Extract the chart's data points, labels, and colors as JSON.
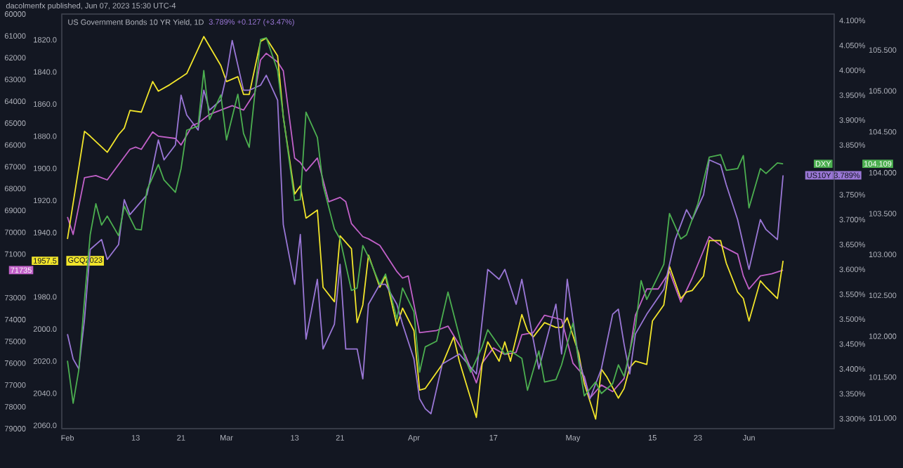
{
  "chart_data": [
    {
      "type": "line",
      "title": "dacolmenfx published, Jun 07, 2023 15:30 UTC-4",
      "annotations": [
        "1957.5",
        "71735"
      ],
      "xlim": [
        "2023-01-31",
        "2023-06-16"
      ],
      "xticks": [
        {
          "value": "2023-02-01",
          "label": "Feb"
        },
        {
          "value": "2023-02-13",
          "label": "13"
        },
        {
          "value": "2023-02-21",
          "label": "21"
        },
        {
          "value": "2023-03-01",
          "label": "Mar"
        },
        {
          "value": "2023-03-13",
          "label": "13"
        },
        {
          "value": "2023-03-21",
          "label": "21"
        },
        {
          "value": "2023-04-03",
          "label": "Apr"
        },
        {
          "value": "2023-04-17",
          "label": "17"
        },
        {
          "value": "2023-05-01",
          "label": "May"
        },
        {
          "value": "2023-05-15",
          "label": "15"
        },
        {
          "value": "2023-05-23",
          "label": "23"
        },
        {
          "value": "2023-06-01",
          "label": "Jun"
        }
      ],
      "ylim": [
        79000,
        60000
      ],
      "yticks": [
        60000,
        61000,
        62000,
        63000,
        64000,
        65000,
        66000,
        67000,
        68000,
        69000,
        70000,
        71000,
        73000,
        74000,
        75000,
        76000,
        77000,
        78000,
        79000
      ],
      "y2lim": [
        2062,
        1804
      ],
      "y2ticks": [
        {
          "value": 1820,
          "label": "1820.0"
        },
        {
          "value": 1840,
          "label": "1840.0"
        },
        {
          "value": 1860,
          "label": "1860.0"
        },
        {
          "value": 1880,
          "label": "1880.0"
        },
        {
          "value": 1900,
          "label": "1900.0"
        },
        {
          "value": 1920,
          "label": "1920.0"
        },
        {
          "value": 1940,
          "label": "1940.0"
        },
        {
          "value": 1980,
          "label": "1980.0"
        },
        {
          "value": 2000,
          "label": "2000.0"
        },
        {
          "value": 2020,
          "label": "2020.0"
        },
        {
          "value": 2040,
          "label": "2040.0"
        },
        {
          "value": 2060,
          "label": "2060.0"
        }
      ],
      "marker": "none",
      "series": [
        {
          "name": "GCQ2023",
          "color": "#f2e52b",
          "axis": "y2",
          "x": [
            "2023-02-01",
            "2023-02-04",
            "2023-02-05",
            "2023-02-08",
            "2023-02-10",
            "2023-02-11",
            "2023-02-12",
            "2023-02-14",
            "2023-02-16",
            "2023-02-17",
            "2023-02-19",
            "2023-02-22",
            "2023-02-25",
            "2023-02-28",
            "2023-03-01",
            "2023-03-03",
            "2023-03-04",
            "2023-03-05",
            "2023-03-07",
            "2023-03-08",
            "2023-03-10",
            "2023-03-11",
            "2023-03-13",
            "2023-03-14",
            "2023-03-15",
            "2023-03-17",
            "2023-03-18",
            "2023-03-20",
            "2023-03-21",
            "2023-03-23",
            "2023-03-24",
            "2023-03-25",
            "2023-03-26",
            "2023-03-28",
            "2023-03-29",
            "2023-03-31",
            "2023-04-01",
            "2023-04-03",
            "2023-04-04",
            "2023-04-05",
            "2023-04-08",
            "2023-04-10",
            "2023-04-11",
            "2023-04-14",
            "2023-04-15",
            "2023-04-16",
            "2023-04-18",
            "2023-04-19",
            "2023-04-20",
            "2023-04-22",
            "2023-04-23",
            "2023-04-24",
            "2023-04-26",
            "2023-04-28",
            "2023-04-29",
            "2023-04-30",
            "2023-05-02",
            "2023-05-03",
            "2023-05-05",
            "2023-05-06",
            "2023-05-07",
            "2023-05-09",
            "2023-05-10",
            "2023-05-11",
            "2023-05-12",
            "2023-05-14",
            "2023-05-15",
            "2023-05-17",
            "2023-05-18",
            "2023-05-20",
            "2023-05-21",
            "2023-05-22",
            "2023-05-24",
            "2023-05-25",
            "2023-05-27",
            "2023-05-28",
            "2023-05-30",
            "2023-05-31",
            "2023-06-01",
            "2023-06-03",
            "2023-06-04",
            "2023-06-06",
            "2023-06-07"
          ],
          "values": [
            1944,
            1877,
            1880,
            1890,
            1879,
            1875,
            1864,
            1865,
            1846,
            1852,
            1848,
            1841,
            1818,
            1836,
            1846,
            1843,
            1854,
            1854,
            1821,
            1819,
            1830,
            1868,
            1916,
            1911,
            1931,
            1926,
            1974,
            1983,
            1942,
            1950,
            1996,
            1985,
            1954,
            1974,
            1967,
            1998,
            1987,
            2001,
            2038,
            2037,
            2022,
            2005,
            2020,
            2055,
            2022,
            2008,
            2020,
            2008,
            2020,
            1991,
            2001,
            2005,
            1996,
            1999,
            1999,
            1993,
            2015,
            2034,
            2056,
            2025,
            2030,
            2043,
            2037,
            2024,
            2020,
            2022,
            1995,
            1985,
            1961,
            1981,
            1977,
            1976,
            1967,
            1945,
            1945,
            1959,
            1977,
            1981,
            1995,
            1970,
            1974,
            1981,
            1957.5
          ]
        },
        {
          "color": "#c261c9",
          "axis": "y",
          "x": [
            "2023-02-01",
            "2023-02-02",
            "2023-02-04",
            "2023-02-06",
            "2023-02-08",
            "2023-02-10",
            "2023-02-12",
            "2023-02-13",
            "2023-02-14",
            "2023-02-16",
            "2023-02-17",
            "2023-02-20",
            "2023-02-21",
            "2023-02-23",
            "2023-02-24",
            "2023-02-26",
            "2023-02-28",
            "2023-03-02",
            "2023-03-04",
            "2023-03-06",
            "2023-03-07",
            "2023-03-08",
            "2023-03-10",
            "2023-03-11",
            "2023-03-13",
            "2023-03-14",
            "2023-03-15",
            "2023-03-17",
            "2023-03-19",
            "2023-03-21",
            "2023-03-22",
            "2023-03-23",
            "2023-03-25",
            "2023-03-26",
            "2023-03-28",
            "2023-03-31",
            "2023-04-01",
            "2023-04-02",
            "2023-04-04",
            "2023-04-07",
            "2023-04-09",
            "2023-04-12",
            "2023-04-14",
            "2023-04-15",
            "2023-04-17",
            "2023-04-19",
            "2023-04-21",
            "2023-04-22",
            "2023-04-24",
            "2023-04-26",
            "2023-04-29",
            "2023-04-30",
            "2023-05-01",
            "2023-05-03",
            "2023-05-04",
            "2023-05-06",
            "2023-05-08",
            "2023-05-10",
            "2023-05-11",
            "2023-05-12",
            "2023-05-14",
            "2023-05-16",
            "2023-05-18",
            "2023-05-20",
            "2023-05-22",
            "2023-05-25",
            "2023-05-27",
            "2023-05-30",
            "2023-05-31",
            "2023-06-01",
            "2023-06-03",
            "2023-06-05",
            "2023-06-07"
          ],
          "values": [
            69300,
            70100,
            67500,
            67400,
            67600,
            66900,
            66200,
            66100,
            66200,
            65400,
            65600,
            65700,
            66000,
            65100,
            65000,
            64600,
            64400,
            64200,
            64400,
            63600,
            62100,
            61800,
            62200,
            62600,
            66600,
            66800,
            67200,
            66600,
            68600,
            68400,
            68600,
            69600,
            70200,
            70300,
            70600,
            71800,
            72100,
            72000,
            74600,
            74500,
            74300,
            75600,
            76900,
            76000,
            75300,
            75600,
            75500,
            74700,
            74600,
            73800,
            74000,
            75000,
            76000,
            76600,
            77600,
            77000,
            77300,
            76700,
            75500,
            73800,
            72600,
            72600,
            71800,
            73200,
            72100,
            70200,
            70600,
            71000,
            72000,
            72600,
            72000,
            71900,
            71735
          ]
        }
      ]
    },
    {
      "type": "line",
      "title": "US Government Bonds 10 YR Yield, 1D",
      "subtitle": "3.789%  +0.127 (+3.47%)",
      "annotations": [
        "3.789%",
        "104.109"
      ],
      "xlim": [
        "2023-01-31",
        "2023-06-16"
      ],
      "tick_labels": "y",
      "ylim": [
        3.28,
        4.113
      ],
      "yticks": [
        {
          "value": 3.3,
          "label": "3.300%"
        },
        {
          "value": 3.35,
          "label": "3.350%"
        },
        {
          "value": 3.4,
          "label": "3.400%"
        },
        {
          "value": 3.45,
          "label": "3.450%"
        },
        {
          "value": 3.5,
          "label": "3.500%"
        },
        {
          "value": 3.55,
          "label": "3.550%"
        },
        {
          "value": 3.6,
          "label": "3.600%"
        },
        {
          "value": 3.65,
          "label": "3.650%"
        },
        {
          "value": 3.7,
          "label": "3.700%"
        },
        {
          "value": 3.75,
          "label": "3.750%"
        },
        {
          "value": 3.85,
          "label": "3.850%"
        },
        {
          "value": 3.9,
          "label": "3.900%"
        },
        {
          "value": 3.95,
          "label": "3.950%"
        },
        {
          "value": 4.0,
          "label": "4.000%"
        },
        {
          "value": 4.05,
          "label": "4.050%"
        },
        {
          "value": 4.1,
          "label": "4.100%"
        }
      ],
      "y2lim": [
        100.87,
        105.94
      ],
      "y2ticks": [
        {
          "value": 101.0,
          "label": "101.000"
        },
        {
          "value": 101.5,
          "label": "101.500"
        },
        {
          "value": 102.0,
          "label": "102.000"
        },
        {
          "value": 102.5,
          "label": "102.500"
        },
        {
          "value": 103.0,
          "label": "103.000"
        },
        {
          "value": 103.5,
          "label": "103.500"
        },
        {
          "value": 104.0,
          "label": "104.000"
        },
        {
          "value": 104.5,
          "label": "104.500"
        },
        {
          "value": 105.0,
          "label": "105.000"
        },
        {
          "value": 105.5,
          "label": "105.500"
        }
      ],
      "marker": "none",
      "series": [
        {
          "name": "US10Y",
          "color": "#9a77d6",
          "axis": "y",
          "x": [
            "2023-02-01",
            "2023-02-02",
            "2023-02-03",
            "2023-02-04",
            "2023-02-05",
            "2023-02-07",
            "2023-02-08",
            "2023-02-10",
            "2023-02-11",
            "2023-02-12",
            "2023-02-15",
            "2023-02-17",
            "2023-02-18",
            "2023-02-20",
            "2023-02-21",
            "2023-02-22",
            "2023-02-24",
            "2023-02-25",
            "2023-02-26",
            "2023-02-28",
            "2023-03-01",
            "2023-03-02",
            "2023-03-04",
            "2023-03-05",
            "2023-03-07",
            "2023-03-08",
            "2023-03-10",
            "2023-03-11",
            "2023-03-13",
            "2023-03-14",
            "2023-03-15",
            "2023-03-17",
            "2023-03-18",
            "2023-03-20",
            "2023-03-21",
            "2023-03-22",
            "2023-03-24",
            "2023-03-25",
            "2023-03-26",
            "2023-03-28",
            "2023-03-29",
            "2023-03-31",
            "2023-04-01",
            "2023-04-03",
            "2023-04-04",
            "2023-04-05",
            "2023-04-06",
            "2023-04-08",
            "2023-04-11",
            "2023-04-14",
            "2023-04-16",
            "2023-04-18",
            "2023-04-19",
            "2023-04-21",
            "2023-04-22",
            "2023-04-25",
            "2023-04-28",
            "2023-04-29",
            "2023-04-30",
            "2023-05-02",
            "2023-05-04",
            "2023-05-06",
            "2023-05-08",
            "2023-05-09",
            "2023-05-10",
            "2023-05-11",
            "2023-05-12",
            "2023-05-14",
            "2023-05-17",
            "2023-05-19",
            "2023-05-21",
            "2023-05-22",
            "2023-05-24",
            "2023-05-25",
            "2023-05-27",
            "2023-05-28",
            "2023-05-30",
            "2023-06-01",
            "2023-06-03",
            "2023-06-04",
            "2023-06-06",
            "2023-06-07"
          ],
          "values": [
            3.47,
            3.42,
            3.4,
            3.5,
            3.64,
            3.66,
            3.62,
            3.65,
            3.74,
            3.71,
            3.75,
            3.86,
            3.82,
            3.85,
            3.95,
            3.91,
            3.88,
            3.96,
            3.92,
            3.94,
            3.99,
            4.06,
            3.96,
            3.96,
            3.97,
            3.99,
            3.94,
            3.69,
            3.57,
            3.67,
            3.46,
            3.58,
            3.44,
            3.49,
            3.61,
            3.44,
            3.44,
            3.38,
            3.53,
            3.57,
            3.57,
            3.53,
            3.49,
            3.42,
            3.34,
            3.32,
            3.31,
            3.41,
            3.43,
            3.39,
            3.6,
            3.58,
            3.6,
            3.53,
            3.58,
            3.4,
            3.53,
            3.43,
            3.58,
            3.42,
            3.34,
            3.4,
            3.51,
            3.52,
            3.45,
            3.39,
            3.47,
            3.51,
            3.56,
            3.66,
            3.72,
            3.7,
            3.75,
            3.82,
            3.81,
            3.77,
            3.7,
            3.6,
            3.7,
            3.68,
            3.66,
            3.789
          ]
        },
        {
          "name": "DXY",
          "color": "#4caf50",
          "axis": "y2",
          "x": [
            "2023-02-01",
            "2023-02-02",
            "2023-02-03",
            "2023-02-04",
            "2023-02-05",
            "2023-02-06",
            "2023-02-07",
            "2023-02-08",
            "2023-02-10",
            "2023-02-11",
            "2023-02-13",
            "2023-02-14",
            "2023-02-15",
            "2023-02-17",
            "2023-02-18",
            "2023-02-20",
            "2023-02-21",
            "2023-02-22",
            "2023-02-24",
            "2023-02-25",
            "2023-02-26",
            "2023-02-28",
            "2023-03-01",
            "2023-03-03",
            "2023-03-04",
            "2023-03-05",
            "2023-03-07",
            "2023-03-08",
            "2023-03-10",
            "2023-03-11",
            "2023-03-13",
            "2023-03-14",
            "2023-03-15",
            "2023-03-17",
            "2023-03-18",
            "2023-03-20",
            "2023-03-21",
            "2023-03-23",
            "2023-03-24",
            "2023-03-25",
            "2023-03-26",
            "2023-03-28",
            "2023-03-29",
            "2023-03-31",
            "2023-04-01",
            "2023-04-03",
            "2023-04-04",
            "2023-04-05",
            "2023-04-07",
            "2023-04-09",
            "2023-04-12",
            "2023-04-13",
            "2023-04-15",
            "2023-04-16",
            "2023-04-19",
            "2023-04-20",
            "2023-04-22",
            "2023-04-23",
            "2023-04-25",
            "2023-04-26",
            "2023-04-28",
            "2023-04-29",
            "2023-05-01",
            "2023-05-02",
            "2023-05-03",
            "2023-05-05",
            "2023-05-06",
            "2023-05-08",
            "2023-05-09",
            "2023-05-10",
            "2023-05-12",
            "2023-05-13",
            "2023-05-14",
            "2023-05-17",
            "2023-05-18",
            "2023-05-20",
            "2023-05-21",
            "2023-05-23",
            "2023-05-25",
            "2023-05-27",
            "2023-05-28",
            "2023-05-30",
            "2023-05-31",
            "2023-06-01",
            "2023-06-03",
            "2023-06-04",
            "2023-06-06",
            "2023-06-07"
          ],
          "values": [
            101.7,
            101.18,
            101.59,
            102.45,
            103.24,
            103.62,
            103.36,
            103.47,
            103.23,
            103.59,
            103.31,
            103.3,
            103.79,
            104.1,
            103.91,
            103.76,
            104.05,
            104.52,
            104.57,
            105.25,
            104.65,
            104.95,
            104.4,
            104.96,
            104.48,
            104.31,
            105.63,
            105.65,
            105.25,
            104.69,
            103.66,
            103.67,
            104.74,
            104.43,
            103.85,
            103.31,
            103.19,
            102.56,
            102.59,
            103.11,
            102.97,
            102.63,
            102.76,
            102.21,
            102.59,
            102.3,
            101.56,
            101.87,
            101.94,
            102.54,
            101.73,
            101.56,
            101.87,
            102.08,
            101.78,
            101.82,
            101.73,
            101.34,
            101.82,
            101.44,
            101.47,
            101.65,
            102.16,
            101.7,
            101.27,
            101.44,
            101.3,
            101.42,
            101.65,
            101.51,
            102.11,
            102.68,
            102.45,
            102.88,
            103.5,
            103.19,
            103.24,
            103.62,
            104.19,
            104.22,
            104.03,
            104.05,
            104.21,
            103.57,
            104.05,
            103.99,
            104.12,
            104.109
          ]
        }
      ]
    }
  ]
}
